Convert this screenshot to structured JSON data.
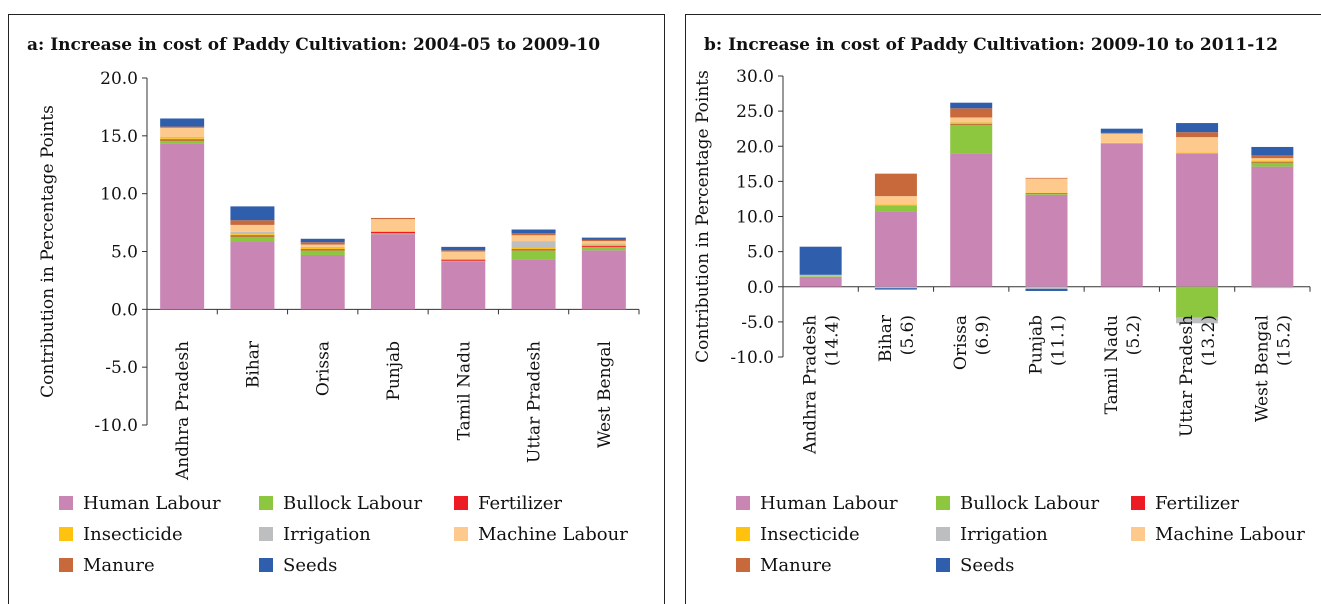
{
  "chart_data": [
    {
      "type": "bar",
      "stacked": true,
      "title": "a: Increase in cost of Paddy Cultivation: 2004-05 to 2009-10",
      "ylabel": "Contribution in Percentage Points",
      "ylim": [
        -10,
        20
      ],
      "yticks": [
        "20.0",
        "15.0",
        "10.0",
        "5.0",
        "0.0",
        "-5.0",
        "-10.0"
      ],
      "ytick_values": [
        20,
        15,
        10,
        5,
        0,
        -5,
        -10
      ],
      "categories": [
        [
          "Andhra Pradesh"
        ],
        [
          "Bihar"
        ],
        [
          "Orissa"
        ],
        [
          "Punjab"
        ],
        [
          "Tamil Nadu"
        ],
        [
          "Uttar Pradesh"
        ],
        [
          "West Bengal"
        ]
      ],
      "series": [
        {
          "name": "Human Labour",
          "color": "#c986b5",
          "values": [
            14.3,
            5.9,
            4.7,
            6.5,
            4.1,
            4.3,
            5.1
          ]
        },
        {
          "name": "Bullock Labour",
          "color": "#8dc63f",
          "values": [
            0.3,
            0.4,
            0.4,
            0.1,
            0.1,
            0.8,
            0.3
          ]
        },
        {
          "name": "Fertilizer",
          "color": "#ed1c24",
          "values": [
            0.1,
            0.1,
            0.1,
            0.1,
            0.1,
            0.1,
            0.1
          ]
        },
        {
          "name": "Insecticide",
          "color": "#ffc20e",
          "values": [
            0.1,
            0.1,
            0.1,
            0.1,
            0.0,
            0.1,
            0.1
          ]
        },
        {
          "name": "Irrigation",
          "color": "#bcbec0",
          "values": [
            0.1,
            0.2,
            0.1,
            0.0,
            0.0,
            0.6,
            0.1
          ]
        },
        {
          "name": "Machine Labour",
          "color": "#fdc98d",
          "values": [
            0.8,
            0.6,
            0.2,
            1.0,
            0.7,
            0.5,
            0.2
          ]
        },
        {
          "name": "Manure",
          "color": "#c8693c",
          "values": [
            0.1,
            0.4,
            0.2,
            0.1,
            0.1,
            0.2,
            0.1
          ]
        },
        {
          "name": "Seeds",
          "color": "#2e5eac",
          "values": [
            0.7,
            1.2,
            0.3,
            0.0,
            0.3,
            0.3,
            0.2
          ]
        }
      ]
    },
    {
      "type": "bar",
      "stacked": true,
      "title": "b: Increase in cost of Paddy Cultivation: 2009-10 to 2011-12",
      "ylabel": "Contribution in Percentage Points",
      "ylim": [
        -10,
        30
      ],
      "yticks": [
        "30.0",
        "25.0",
        "20.0",
        "15.0",
        "10.0",
        "5.0",
        "0.0",
        "-5.0",
        "-10.0"
      ],
      "ytick_values": [
        30,
        25,
        20,
        15,
        10,
        5,
        0,
        -5,
        -10
      ],
      "categories": [
        [
          "Andhra Pradesh",
          "(14.4)"
        ],
        [
          "Bihar",
          "(5.6)"
        ],
        [
          "Orissa",
          "(6.9)"
        ],
        [
          "Punjab",
          "(11.1)"
        ],
        [
          "Tamil Nadu",
          "(5.2)"
        ],
        [
          "Uttar Pradesh",
          "(13.2)"
        ],
        [
          "West Bengal",
          "(15.2)"
        ]
      ],
      "series": [
        {
          "name": "Human Labour",
          "color": "#c986b5",
          "values": [
            1.4,
            10.7,
            19.0,
            13.1,
            20.4,
            19.0,
            17.1
          ]
        },
        {
          "name": "Bullock Labour",
          "color": "#8dc63f",
          "values": [
            0.1,
            0.9,
            4.1,
            0.1,
            0.0,
            -4.4,
            0.6
          ]
        },
        {
          "name": "Fertilizer",
          "color": "#ed1c24",
          "values": [
            0.0,
            0.0,
            0.1,
            0.1,
            0.0,
            0.0,
            0.1
          ]
        },
        {
          "name": "Insecticide",
          "color": "#ffc20e",
          "values": [
            0.0,
            0.1,
            0.2,
            0.1,
            0.1,
            0.1,
            0.2
          ]
        },
        {
          "name": "Irrigation",
          "color": "#bcbec0",
          "values": [
            0.2,
            -0.2,
            0.1,
            -0.3,
            0.0,
            -0.8,
            -0.2
          ]
        },
        {
          "name": "Machine Labour",
          "color": "#fdc98d",
          "values": [
            0.0,
            1.2,
            0.6,
            2.0,
            1.3,
            2.2,
            0.3
          ]
        },
        {
          "name": "Manure",
          "color": "#c8693c",
          "values": [
            0.0,
            3.2,
            1.3,
            0.1,
            0.1,
            0.7,
            0.4
          ]
        },
        {
          "name": "Seeds",
          "color": "#2e5eac",
          "values": [
            4.0,
            -0.2,
            0.8,
            -0.3,
            0.6,
            1.3,
            1.2
          ]
        }
      ]
    }
  ],
  "legend": [
    {
      "label": "Human Labour",
      "color": "#c986b5"
    },
    {
      "label": "Bullock Labour",
      "color": "#8dc63f"
    },
    {
      "label": "Fertilizer",
      "color": "#ed1c24"
    },
    {
      "label": "Insecticide",
      "color": "#ffc20e"
    },
    {
      "label": "Irrigation",
      "color": "#bcbec0"
    },
    {
      "label": "Machine Labour",
      "color": "#fdc98d"
    },
    {
      "label": "Manure",
      "color": "#c8693c"
    },
    {
      "label": "Seeds",
      "color": "#2e5eac"
    }
  ]
}
